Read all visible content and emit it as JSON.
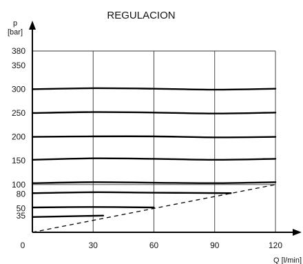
{
  "chart_data": {
    "type": "line",
    "title": "REGULACION",
    "ylabel": "p",
    "yunit": "[bar]",
    "xlabel": "Q [l/min]",
    "xlim": [
      0,
      120
    ],
    "ylim": [
      0,
      380
    ],
    "x_ticks": [
      0,
      30,
      60,
      90,
      120
    ],
    "y_ticks": [
      35,
      50,
      80,
      100,
      150,
      200,
      250,
      300,
      350,
      380
    ],
    "x_grid": [
      30,
      60,
      90,
      120
    ],
    "y_grid": [
      100,
      380
    ],
    "grid": true,
    "series": [
      {
        "x": [
          0,
          30,
          60,
          90,
          120
        ],
        "values": [
          300,
          302,
          301,
          299,
          301
        ]
      },
      {
        "x": [
          0,
          30,
          60,
          90,
          120
        ],
        "values": [
          250,
          252,
          251,
          249,
          251
        ]
      },
      {
        "x": [
          0,
          30,
          60,
          90,
          120
        ],
        "values": [
          200,
          201,
          201,
          199,
          200
        ]
      },
      {
        "x": [
          0,
          30,
          60,
          90,
          120
        ],
        "values": [
          152,
          155,
          154,
          152,
          154
        ]
      },
      {
        "x": [
          0,
          30,
          60,
          90,
          120
        ],
        "values": [
          103,
          105,
          104,
          103,
          105
        ]
      },
      {
        "x": [
          0,
          30,
          60,
          98
        ],
        "values": [
          82,
          84,
          83,
          82
        ]
      },
      {
        "x": [
          0,
          30,
          60
        ],
        "values": [
          52,
          53,
          52
        ]
      },
      {
        "x": [
          0,
          35
        ],
        "values": [
          32,
          35
        ]
      }
    ],
    "limit_line": {
      "style": "dashed",
      "x": [
        0,
        120
      ],
      "values": [
        0,
        100
      ]
    }
  }
}
